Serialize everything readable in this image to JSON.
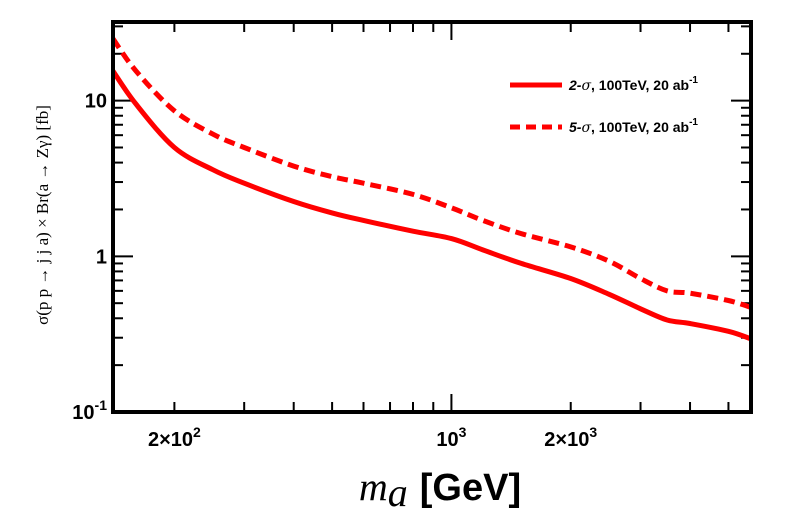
{
  "chart_data": {
    "type": "line",
    "scale": {
      "x": "log",
      "y": "log"
    },
    "xlim": [
      140,
      5700
    ],
    "ylim": [
      0.1,
      32
    ],
    "xlabel": {
      "main": "m",
      "sub": "a",
      "unit": "[GeV]"
    },
    "ylabel": "σ(p p → j j a) × Br(a → Zγ) [fb]",
    "x_ticks": [
      {
        "value": 200,
        "mantissa": "2×10",
        "exp": "2"
      },
      {
        "value": 1000,
        "mantissa": "10",
        "exp": "3"
      },
      {
        "value": 2000,
        "mantissa": "2×10",
        "exp": "3"
      }
    ],
    "y_ticks": [
      {
        "value": 0.1,
        "mantissa": "10",
        "exp": "-1"
      },
      {
        "value": 1,
        "mantissa": "1",
        "exp": ""
      },
      {
        "value": 10,
        "mantissa": "10",
        "exp": ""
      }
    ],
    "series": [
      {
        "name": "2-σ, 100TeV, 20 ab-1",
        "legend": {
          "prefix": "2-",
          "sigma": "σ",
          "text": ", 100TeV, 20 ab",
          "sup": "-1"
        },
        "style": "solid",
        "color": "#ff0000",
        "x": [
          140,
          160,
          200,
          250,
          300,
          400,
          500,
          600,
          800,
          1000,
          1200,
          1500,
          2000,
          2500,
          3000,
          3500,
          4000,
          5000,
          5700
        ],
        "y": [
          15.5,
          9.5,
          5.0,
          3.6,
          2.95,
          2.25,
          1.9,
          1.7,
          1.45,
          1.3,
          1.1,
          0.9,
          0.72,
          0.57,
          0.46,
          0.39,
          0.37,
          0.33,
          0.295
        ]
      },
      {
        "name": "5-σ, 100TeV, 20 ab-1",
        "legend": {
          "prefix": "5-",
          "sigma": "σ",
          "text": ", 100TeV, 20 ab",
          "sup": "-1"
        },
        "style": "dashed",
        "color": "#ff0000",
        "x": [
          140,
          160,
          200,
          250,
          300,
          400,
          500,
          600,
          800,
          1000,
          1200,
          1500,
          2000,
          2500,
          3000,
          3500,
          4000,
          5000,
          5700
        ],
        "y": [
          25,
          15.5,
          8.6,
          6.1,
          5.0,
          3.8,
          3.25,
          2.95,
          2.5,
          2.05,
          1.7,
          1.4,
          1.15,
          0.93,
          0.72,
          0.6,
          0.58,
          0.52,
          0.47
        ]
      }
    ]
  }
}
